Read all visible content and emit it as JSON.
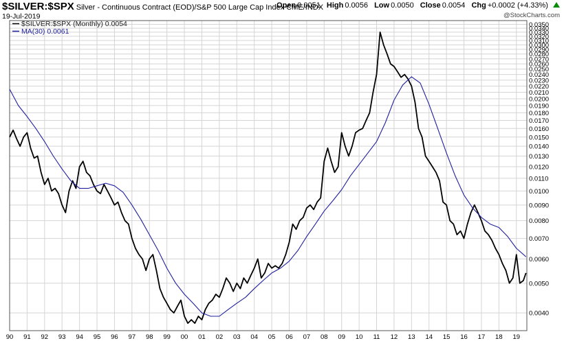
{
  "header": {
    "symbol": "$SILVER:$SPX",
    "description": "Silver - Continuous Contract (EOD)/S&P 500 Large Cap Index  CME/INDX",
    "date": "19-Jul-2019",
    "open_label": "Open",
    "open": "0.0051",
    "high_label": "High",
    "high": "0.0056",
    "low_label": "Low",
    "low": "0.0050",
    "close_label": "Close",
    "close": "0.0054",
    "chg_label": "Chg",
    "chg": "+0.0002 (+4.33%)",
    "up_arrow_color": "#0a8a0a",
    "brand": "@StockCharts.com"
  },
  "legend": [
    {
      "text": "$SILVER:$SPX (Monthly) 0.0054",
      "color": "#000000"
    },
    {
      "text": "MA(30) 0.0061",
      "color": "#1f1f9e"
    }
  ],
  "chart_data": {
    "type": "line",
    "y_scale": "log",
    "ylim": [
      0.0035,
      0.036
    ],
    "xlim": [
      1990.0,
      2019.6
    ],
    "grid": true,
    "y_ticks": [
      "0.0350",
      "0.0340",
      "0.0330",
      "0.0320",
      "0.0310",
      "0.0300",
      "0.0290",
      "0.0280",
      "0.0270",
      "0.0260",
      "0.0250",
      "0.0240",
      "0.0230",
      "0.0220",
      "0.0210",
      "0.0200",
      "0.0190",
      "0.0180",
      "0.0170",
      "0.0160",
      "0.0150",
      "0.0140",
      "0.0130",
      "0.0120",
      "0.0110",
      "0.0100",
      "0.0090",
      "0.0080",
      "0.0070",
      "0.0060",
      "0.0050",
      "0.0040"
    ],
    "x_ticks": [
      {
        "label": "90",
        "year": 1990
      },
      {
        "label": "91",
        "year": 1991
      },
      {
        "label": "92",
        "year": 1992
      },
      {
        "label": "93",
        "year": 1993
      },
      {
        "label": "94",
        "year": 1994
      },
      {
        "label": "95",
        "year": 1995
      },
      {
        "label": "96",
        "year": 1996
      },
      {
        "label": "97",
        "year": 1997
      },
      {
        "label": "98",
        "year": 1998
      },
      {
        "label": "99",
        "year": 1999
      },
      {
        "label": "00",
        "year": 2000
      },
      {
        "label": "01",
        "year": 2001
      },
      {
        "label": "02",
        "year": 2002
      },
      {
        "label": "03",
        "year": 2003
      },
      {
        "label": "04",
        "year": 2004
      },
      {
        "label": "05",
        "year": 2005
      },
      {
        "label": "06",
        "year": 2006
      },
      {
        "label": "07",
        "year": 2007
      },
      {
        "label": "08",
        "year": 2008
      },
      {
        "label": "09",
        "year": 2009
      },
      {
        "label": "10",
        "year": 2010
      },
      {
        "label": "11",
        "year": 2011
      },
      {
        "label": "12",
        "year": 2012
      },
      {
        "label": "13",
        "year": 2013
      },
      {
        "label": "14",
        "year": 2014
      },
      {
        "label": "15",
        "year": 2015
      },
      {
        "label": "16",
        "year": 2016
      },
      {
        "label": "17",
        "year": 2017
      },
      {
        "label": "18",
        "year": 2018
      },
      {
        "label": "19",
        "year": 2019
      }
    ],
    "series": [
      {
        "name": "$SILVER:$SPX (Monthly)",
        "color": "#000000",
        "points": [
          [
            1990.0,
            0.015
          ],
          [
            1990.2,
            0.0158
          ],
          [
            1990.4,
            0.0148
          ],
          [
            1990.6,
            0.014
          ],
          [
            1990.8,
            0.015
          ],
          [
            1991.0,
            0.0155
          ],
          [
            1991.2,
            0.0138
          ],
          [
            1991.4,
            0.0128
          ],
          [
            1991.6,
            0.013
          ],
          [
            1991.8,
            0.0115
          ],
          [
            1992.0,
            0.0105
          ],
          [
            1992.2,
            0.011
          ],
          [
            1992.4,
            0.01
          ],
          [
            1992.6,
            0.0102
          ],
          [
            1992.8,
            0.0098
          ],
          [
            1993.0,
            0.009
          ],
          [
            1993.2,
            0.0085
          ],
          [
            1993.4,
            0.01
          ],
          [
            1993.6,
            0.0108
          ],
          [
            1993.8,
            0.0102
          ],
          [
            1994.0,
            0.012
          ],
          [
            1994.2,
            0.0125
          ],
          [
            1994.4,
            0.0115
          ],
          [
            1994.6,
            0.0112
          ],
          [
            1994.8,
            0.0105
          ],
          [
            1995.0,
            0.01
          ],
          [
            1995.2,
            0.0098
          ],
          [
            1995.4,
            0.0105
          ],
          [
            1995.6,
            0.01
          ],
          [
            1995.8,
            0.0095
          ],
          [
            1996.0,
            0.009
          ],
          [
            1996.2,
            0.0092
          ],
          [
            1996.4,
            0.0085
          ],
          [
            1996.6,
            0.008
          ],
          [
            1996.8,
            0.0078
          ],
          [
            1997.0,
            0.007
          ],
          [
            1997.2,
            0.0065
          ],
          [
            1997.4,
            0.0062
          ],
          [
            1997.6,
            0.006
          ],
          [
            1997.8,
            0.0055
          ],
          [
            1998.0,
            0.006
          ],
          [
            1998.2,
            0.0062
          ],
          [
            1998.4,
            0.0055
          ],
          [
            1998.6,
            0.0048
          ],
          [
            1998.8,
            0.0045
          ],
          [
            1999.0,
            0.0043
          ],
          [
            1999.2,
            0.0041
          ],
          [
            1999.4,
            0.004
          ],
          [
            1999.6,
            0.0042
          ],
          [
            1999.8,
            0.0044
          ],
          [
            2000.0,
            0.0039
          ],
          [
            2000.2,
            0.0037
          ],
          [
            2000.4,
            0.0038
          ],
          [
            2000.6,
            0.0037
          ],
          [
            2000.8,
            0.0039
          ],
          [
            2001.0,
            0.0038
          ],
          [
            2001.2,
            0.0041
          ],
          [
            2001.4,
            0.0043
          ],
          [
            2001.6,
            0.0044
          ],
          [
            2001.8,
            0.0046
          ],
          [
            2002.0,
            0.0045
          ],
          [
            2002.2,
            0.0048
          ],
          [
            2002.4,
            0.0052
          ],
          [
            2002.6,
            0.005
          ],
          [
            2002.8,
            0.0047
          ],
          [
            2003.0,
            0.005
          ],
          [
            2003.2,
            0.0048
          ],
          [
            2003.4,
            0.0052
          ],
          [
            2003.6,
            0.005
          ],
          [
            2003.8,
            0.0053
          ],
          [
            2004.0,
            0.0056
          ],
          [
            2004.2,
            0.006
          ],
          [
            2004.4,
            0.0052
          ],
          [
            2004.6,
            0.0054
          ],
          [
            2004.8,
            0.0058
          ],
          [
            2005.0,
            0.0056
          ],
          [
            2005.2,
            0.0057
          ],
          [
            2005.4,
            0.0056
          ],
          [
            2005.6,
            0.0058
          ],
          [
            2005.8,
            0.0062
          ],
          [
            2006.0,
            0.0068
          ],
          [
            2006.2,
            0.0078
          ],
          [
            2006.4,
            0.0075
          ],
          [
            2006.6,
            0.008
          ],
          [
            2006.8,
            0.0082
          ],
          [
            2007.0,
            0.0088
          ],
          [
            2007.2,
            0.009
          ],
          [
            2007.4,
            0.0087
          ],
          [
            2007.6,
            0.0092
          ],
          [
            2007.8,
            0.0095
          ],
          [
            2008.0,
            0.0125
          ],
          [
            2008.2,
            0.0138
          ],
          [
            2008.4,
            0.0125
          ],
          [
            2008.6,
            0.0115
          ],
          [
            2008.8,
            0.012
          ],
          [
            2009.0,
            0.0155
          ],
          [
            2009.2,
            0.014
          ],
          [
            2009.4,
            0.013
          ],
          [
            2009.6,
            0.014
          ],
          [
            2009.8,
            0.0155
          ],
          [
            2010.0,
            0.0158
          ],
          [
            2010.2,
            0.016
          ],
          [
            2010.4,
            0.017
          ],
          [
            2010.6,
            0.018
          ],
          [
            2010.8,
            0.021
          ],
          [
            2011.0,
            0.024
          ],
          [
            2011.2,
            0.033
          ],
          [
            2011.4,
            0.03
          ],
          [
            2011.6,
            0.028
          ],
          [
            2011.8,
            0.026
          ],
          [
            2012.0,
            0.0255
          ],
          [
            2012.2,
            0.0245
          ],
          [
            2012.4,
            0.0235
          ],
          [
            2012.6,
            0.024
          ],
          [
            2012.8,
            0.0232
          ],
          [
            2013.0,
            0.022
          ],
          [
            2013.2,
            0.0195
          ],
          [
            2013.4,
            0.016
          ],
          [
            2013.6,
            0.015
          ],
          [
            2013.8,
            0.013
          ],
          [
            2014.0,
            0.0125
          ],
          [
            2014.2,
            0.012
          ],
          [
            2014.4,
            0.0115
          ],
          [
            2014.6,
            0.0108
          ],
          [
            2014.8,
            0.0092
          ],
          [
            2015.0,
            0.009
          ],
          [
            2015.2,
            0.008
          ],
          [
            2015.4,
            0.0078
          ],
          [
            2015.6,
            0.0072
          ],
          [
            2015.8,
            0.0074
          ],
          [
            2016.0,
            0.007
          ],
          [
            2016.2,
            0.0078
          ],
          [
            2016.4,
            0.0085
          ],
          [
            2016.6,
            0.009
          ],
          [
            2016.8,
            0.0085
          ],
          [
            2017.0,
            0.008
          ],
          [
            2017.2,
            0.0074
          ],
          [
            2017.4,
            0.0072
          ],
          [
            2017.6,
            0.0069
          ],
          [
            2017.8,
            0.0065
          ],
          [
            2018.0,
            0.0062
          ],
          [
            2018.2,
            0.0058
          ],
          [
            2018.4,
            0.0055
          ],
          [
            2018.6,
            0.005
          ],
          [
            2018.8,
            0.0052
          ],
          [
            2019.0,
            0.0062
          ],
          [
            2019.2,
            0.005
          ],
          [
            2019.4,
            0.0051
          ],
          [
            2019.55,
            0.0054
          ]
        ]
      },
      {
        "name": "MA(30)",
        "color": "#1f1f9e",
        "points": [
          [
            1990.0,
            0.0215
          ],
          [
            1990.5,
            0.019
          ],
          [
            1991.0,
            0.0175
          ],
          [
            1991.5,
            0.016
          ],
          [
            1992.0,
            0.0145
          ],
          [
            1992.5,
            0.013
          ],
          [
            1993.0,
            0.0118
          ],
          [
            1993.5,
            0.0108
          ],
          [
            1994.0,
            0.0102
          ],
          [
            1994.5,
            0.0102
          ],
          [
            1995.0,
            0.0104
          ],
          [
            1995.5,
            0.0106
          ],
          [
            1996.0,
            0.0104
          ],
          [
            1996.5,
            0.0099
          ],
          [
            1997.0,
            0.009
          ],
          [
            1997.5,
            0.0081
          ],
          [
            1998.0,
            0.0072
          ],
          [
            1998.5,
            0.0064
          ],
          [
            1999.0,
            0.0056
          ],
          [
            1999.5,
            0.005
          ],
          [
            2000.0,
            0.0046
          ],
          [
            2000.5,
            0.0043
          ],
          [
            2001.0,
            0.004
          ],
          [
            2001.5,
            0.0039
          ],
          [
            2002.0,
            0.0039
          ],
          [
            2002.5,
            0.0041
          ],
          [
            2003.0,
            0.0043
          ],
          [
            2003.5,
            0.0045
          ],
          [
            2004.0,
            0.0048
          ],
          [
            2004.5,
            0.0051
          ],
          [
            2005.0,
            0.0054
          ],
          [
            2005.5,
            0.0056
          ],
          [
            2006.0,
            0.0059
          ],
          [
            2006.5,
            0.0064
          ],
          [
            2007.0,
            0.0071
          ],
          [
            2007.5,
            0.0078
          ],
          [
            2008.0,
            0.0086
          ],
          [
            2008.5,
            0.0093
          ],
          [
            2009.0,
            0.0101
          ],
          [
            2009.5,
            0.0112
          ],
          [
            2010.0,
            0.0122
          ],
          [
            2010.5,
            0.0133
          ],
          [
            2011.0,
            0.0145
          ],
          [
            2011.5,
            0.0167
          ],
          [
            2012.0,
            0.0198
          ],
          [
            2012.5,
            0.0222
          ],
          [
            2013.0,
            0.0236
          ],
          [
            2013.5,
            0.0225
          ],
          [
            2014.0,
            0.0192
          ],
          [
            2014.5,
            0.016
          ],
          [
            2015.0,
            0.0133
          ],
          [
            2015.5,
            0.0112
          ],
          [
            2016.0,
            0.0097
          ],
          [
            2016.5,
            0.0088
          ],
          [
            2017.0,
            0.0082
          ],
          [
            2017.5,
            0.0078
          ],
          [
            2018.0,
            0.0076
          ],
          [
            2018.5,
            0.0071
          ],
          [
            2019.0,
            0.0065
          ],
          [
            2019.55,
            0.0061
          ]
        ]
      }
    ]
  }
}
